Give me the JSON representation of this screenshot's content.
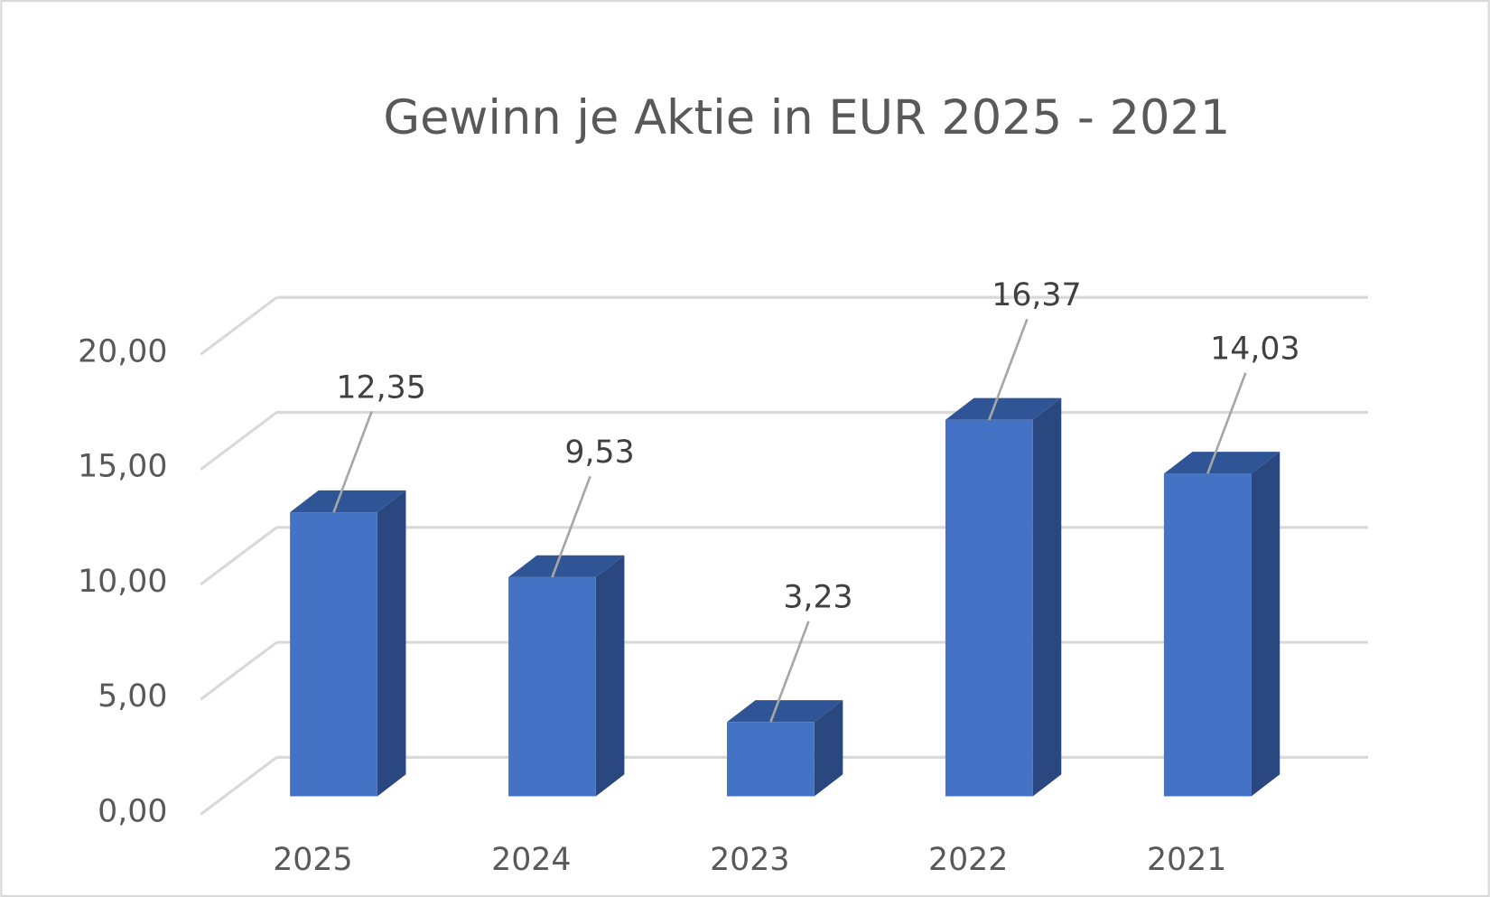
{
  "chart_data": {
    "type": "bar3d",
    "title": "Gewinn je Aktie in EUR 2025 - 2021",
    "categories": [
      "2025",
      "2024",
      "2023",
      "2022",
      "2021"
    ],
    "values": [
      12.35,
      9.53,
      3.23,
      16.37,
      14.03
    ],
    "value_labels": [
      "12,35",
      "9,53",
      "3,23",
      "16,37",
      "14,03"
    ],
    "color": "#4472c4",
    "ylim": [
      0,
      20
    ],
    "yticks": [
      {
        "value": 0,
        "label": "0,00"
      },
      {
        "value": 5,
        "label": "5,00"
      },
      {
        "value": 10,
        "label": "10,00"
      },
      {
        "value": 15,
        "label": "15,00"
      },
      {
        "value": 20,
        "label": "20,00"
      }
    ],
    "grid": true
  }
}
